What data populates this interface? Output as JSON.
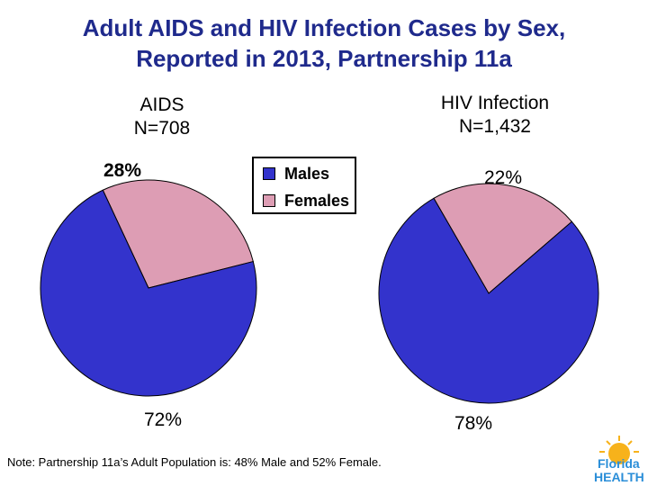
{
  "title_line1": "Adult AIDS and HIV Infection Cases by Sex,",
  "title_line2": "Reported in 2013, Partnership 11a",
  "logo": {
    "line1": "Florida",
    "line2": "HEALTH"
  },
  "note": "Note:  Partnership 11a’s Adult Population is:  48% Male and 52% Female.",
  "colors": {
    "males": "#3333cc",
    "females": "#dd9db4"
  },
  "chart_data": [
    {
      "type": "pie",
      "title": "AIDS",
      "subtitle": "N=708",
      "series": [
        {
          "name": "Males",
          "value": 72,
          "label": "72%"
        },
        {
          "name": "Females",
          "value": 28,
          "label": "28%"
        }
      ],
      "legend": {
        "position": "center",
        "entries": [
          "Males",
          "Females"
        ]
      }
    },
    {
      "type": "pie",
      "title": "HIV Infection",
      "subtitle": "N=1,432",
      "series": [
        {
          "name": "Males",
          "value": 78,
          "label": "78%"
        },
        {
          "name": "Females",
          "value": 22,
          "label": "22%"
        }
      ]
    }
  ]
}
